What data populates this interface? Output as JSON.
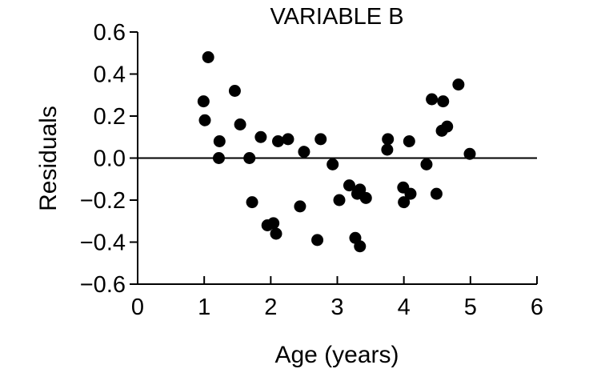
{
  "chart_data": {
    "type": "scatter",
    "title": "VARIABLE B",
    "xlabel": "Age (years)",
    "ylabel": "Residuals",
    "xlim": [
      0,
      6
    ],
    "ylim": [
      -0.6,
      0.6
    ],
    "xticks": [
      0,
      1,
      2,
      3,
      4,
      5,
      6
    ],
    "xtick_labels": [
      "0",
      "1",
      "2",
      "3",
      "4",
      "5",
      "6"
    ],
    "yticks": [
      0.6,
      0.4,
      0.2,
      0.0,
      -0.2,
      -0.4,
      -0.6
    ],
    "ytick_labels": [
      "0.6",
      "0.4",
      "0.2",
      "0.0",
      "−0.2",
      "−0.4",
      "−0.6"
    ],
    "reference_line_y": 0.0,
    "marker_color": "#000000",
    "grid": false,
    "series": [
      {
        "name": "Residuals",
        "points": [
          {
            "x": 0.99,
            "y": 0.27
          },
          {
            "x": 1.01,
            "y": 0.18
          },
          {
            "x": 1.06,
            "y": 0.48
          },
          {
            "x": 1.22,
            "y": 0.0
          },
          {
            "x": 1.23,
            "y": 0.08
          },
          {
            "x": 1.46,
            "y": 0.32
          },
          {
            "x": 1.54,
            "y": 0.16
          },
          {
            "x": 1.68,
            "y": 0.0
          },
          {
            "x": 1.72,
            "y": -0.21
          },
          {
            "x": 1.85,
            "y": 0.1
          },
          {
            "x": 1.95,
            "y": -0.32
          },
          {
            "x": 2.04,
            "y": -0.31
          },
          {
            "x": 2.08,
            "y": -0.36
          },
          {
            "x": 2.11,
            "y": 0.08
          },
          {
            "x": 2.26,
            "y": 0.09
          },
          {
            "x": 2.44,
            "y": -0.23
          },
          {
            "x": 2.5,
            "y": 0.03
          },
          {
            "x": 2.7,
            "y": -0.39
          },
          {
            "x": 2.75,
            "y": 0.09
          },
          {
            "x": 2.93,
            "y": -0.03
          },
          {
            "x": 3.03,
            "y": -0.2
          },
          {
            "x": 3.18,
            "y": -0.13
          },
          {
            "x": 3.27,
            "y": -0.38
          },
          {
            "x": 3.3,
            "y": -0.17
          },
          {
            "x": 3.34,
            "y": -0.15
          },
          {
            "x": 3.34,
            "y": -0.42
          },
          {
            "x": 3.43,
            "y": -0.19
          },
          {
            "x": 3.75,
            "y": 0.04
          },
          {
            "x": 3.76,
            "y": 0.09
          },
          {
            "x": 3.99,
            "y": -0.14
          },
          {
            "x": 4.0,
            "y": -0.21
          },
          {
            "x": 4.08,
            "y": 0.08
          },
          {
            "x": 4.1,
            "y": -0.17
          },
          {
            "x": 4.34,
            "y": -0.03
          },
          {
            "x": 4.42,
            "y": 0.28
          },
          {
            "x": 4.49,
            "y": -0.17
          },
          {
            "x": 4.57,
            "y": 0.13
          },
          {
            "x": 4.59,
            "y": 0.27
          },
          {
            "x": 4.65,
            "y": 0.15
          },
          {
            "x": 4.82,
            "y": 0.35
          },
          {
            "x": 4.99,
            "y": 0.02
          }
        ]
      }
    ]
  }
}
